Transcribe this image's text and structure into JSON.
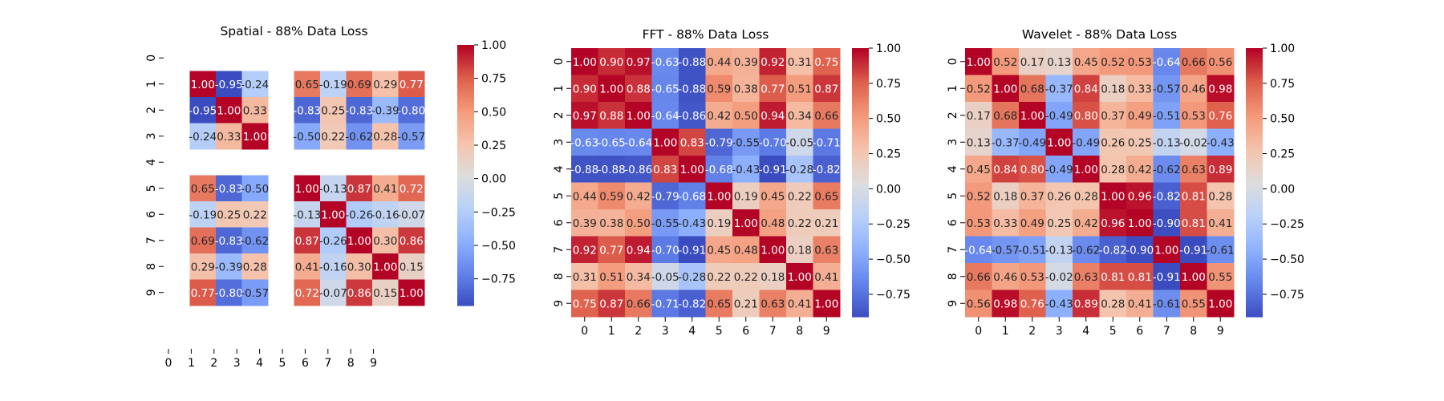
{
  "chart_data": [
    {
      "type": "heatmap",
      "title": "Spatial - 88% Data Loss",
      "xlabel": "",
      "ylabel": "",
      "x_tick_labels": [
        "0",
        "1",
        "2",
        "3",
        "4",
        "5",
        "6",
        "7",
        "8",
        "9"
      ],
      "y_tick_labels": [
        "0",
        "1",
        "2",
        "3",
        "4",
        "5",
        "6",
        "7",
        "8",
        "9"
      ],
      "colorbar_range": [
        -0.95,
        1.0
      ],
      "colorbar_ticks": [
        -0.75,
        -0.5,
        -0.25,
        0.0,
        0.25,
        0.5,
        0.75,
        1.0
      ],
      "colorbar_tick_labels": [
        "−0.75",
        "−0.50",
        "−0.25",
        "0.00",
        "0.25",
        "0.50",
        "0.75",
        "1.00"
      ],
      "missing_rows_cols": [
        0,
        4
      ],
      "y_axis_spans_missing": true,
      "values": [
        [
          null,
          null,
          null,
          null,
          null,
          null,
          null,
          null,
          null,
          null
        ],
        [
          null,
          1.0,
          -0.95,
          -0.24,
          null,
          0.65,
          -0.19,
          0.69,
          0.29,
          0.77
        ],
        [
          null,
          -0.95,
          1.0,
          0.33,
          null,
          -0.83,
          0.25,
          -0.83,
          -0.39,
          -0.8
        ],
        [
          null,
          -0.24,
          0.33,
          1.0,
          null,
          -0.5,
          0.22,
          -0.62,
          0.28,
          -0.57
        ],
        [
          null,
          null,
          null,
          null,
          null,
          null,
          null,
          null,
          null,
          null
        ],
        [
          null,
          0.65,
          -0.83,
          -0.5,
          null,
          1.0,
          -0.13,
          0.87,
          0.41,
          0.72
        ],
        [
          null,
          -0.19,
          0.25,
          0.22,
          null,
          -0.13,
          1.0,
          -0.26,
          -0.16,
          -0.07
        ],
        [
          null,
          0.69,
          -0.83,
          -0.62,
          null,
          0.87,
          -0.26,
          1.0,
          0.3,
          0.86
        ],
        [
          null,
          0.29,
          -0.39,
          0.28,
          null,
          0.41,
          -0.16,
          0.3,
          1.0,
          0.15
        ],
        [
          null,
          0.77,
          -0.8,
          -0.57,
          null,
          0.72,
          -0.07,
          0.86,
          0.15,
          1.0
        ]
      ]
    },
    {
      "type": "heatmap",
      "title": "FFT - 88% Data Loss",
      "xlabel": "",
      "ylabel": "",
      "x_tick_labels": [
        "0",
        "1",
        "2",
        "3",
        "4",
        "5",
        "6",
        "7",
        "8",
        "9"
      ],
      "y_tick_labels": [
        "0",
        "1",
        "2",
        "3",
        "4",
        "5",
        "6",
        "7",
        "8",
        "9"
      ],
      "colorbar_range": [
        -0.91,
        1.0
      ],
      "colorbar_ticks": [
        -0.75,
        -0.5,
        -0.25,
        0.0,
        0.25,
        0.5,
        0.75,
        1.0
      ],
      "colorbar_tick_labels": [
        "−0.75",
        "−0.50",
        "−0.25",
        "0.00",
        "0.25",
        "0.50",
        "0.75",
        "1.00"
      ],
      "values": [
        [
          1.0,
          0.9,
          0.97,
          -0.63,
          -0.88,
          0.44,
          0.39,
          0.92,
          0.31,
          0.75
        ],
        [
          0.9,
          1.0,
          0.88,
          -0.65,
          -0.88,
          0.59,
          0.38,
          0.77,
          0.51,
          0.87
        ],
        [
          0.97,
          0.88,
          1.0,
          -0.64,
          -0.86,
          0.42,
          0.5,
          0.94,
          0.34,
          0.66
        ],
        [
          -0.63,
          -0.65,
          -0.64,
          1.0,
          0.83,
          -0.79,
          -0.55,
          -0.7,
          -0.05,
          -0.71
        ],
        [
          -0.88,
          -0.88,
          -0.86,
          0.83,
          1.0,
          -0.68,
          -0.43,
          -0.91,
          -0.28,
          -0.82
        ],
        [
          0.44,
          0.59,
          0.42,
          -0.79,
          -0.68,
          1.0,
          0.19,
          0.45,
          0.22,
          0.65
        ],
        [
          0.39,
          0.38,
          0.5,
          -0.55,
          -0.43,
          0.19,
          1.0,
          0.48,
          0.22,
          0.21
        ],
        [
          0.92,
          0.77,
          0.94,
          -0.7,
          -0.91,
          0.45,
          0.48,
          1.0,
          0.18,
          0.63
        ],
        [
          0.31,
          0.51,
          0.34,
          -0.05,
          -0.28,
          0.22,
          0.22,
          0.18,
          1.0,
          0.41
        ],
        [
          0.75,
          0.87,
          0.66,
          -0.71,
          -0.82,
          0.65,
          0.21,
          0.63,
          0.41,
          1.0
        ]
      ]
    },
    {
      "type": "heatmap",
      "title": "Wavelet - 88% Data Loss",
      "xlabel": "",
      "ylabel": "",
      "x_tick_labels": [
        "0",
        "1",
        "2",
        "3",
        "4",
        "5",
        "6",
        "7",
        "8",
        "9"
      ],
      "y_tick_labels": [
        "0",
        "1",
        "2",
        "3",
        "4",
        "5",
        "6",
        "7",
        "8",
        "9"
      ],
      "colorbar_range": [
        -0.91,
        1.0
      ],
      "colorbar_ticks": [
        -0.75,
        -0.5,
        -0.25,
        0.0,
        0.25,
        0.5,
        0.75,
        1.0
      ],
      "colorbar_tick_labels": [
        "−0.75",
        "−0.50",
        "−0.25",
        "0.00",
        "0.25",
        "0.50",
        "0.75",
        "1.00"
      ],
      "values": [
        [
          1.0,
          0.52,
          0.17,
          0.13,
          0.45,
          0.52,
          0.53,
          -0.64,
          0.66,
          0.56
        ],
        [
          0.52,
          1.0,
          0.68,
          -0.37,
          0.84,
          0.18,
          0.33,
          -0.57,
          0.46,
          0.98
        ],
        [
          0.17,
          0.68,
          1.0,
          -0.49,
          0.8,
          0.37,
          0.49,
          -0.51,
          0.53,
          0.76
        ],
        [
          0.13,
          -0.37,
          -0.49,
          1.0,
          -0.49,
          0.26,
          0.25,
          -0.13,
          -0.02,
          -0.43
        ],
        [
          0.45,
          0.84,
          0.8,
          -0.49,
          1.0,
          0.28,
          0.42,
          -0.62,
          0.63,
          0.89
        ],
        [
          0.52,
          0.18,
          0.37,
          0.26,
          0.28,
          1.0,
          0.96,
          -0.82,
          0.81,
          0.28
        ],
        [
          0.53,
          0.33,
          0.49,
          0.25,
          0.42,
          0.96,
          1.0,
          -0.9,
          0.81,
          0.41
        ],
        [
          -0.64,
          -0.57,
          -0.51,
          -0.13,
          -0.62,
          -0.82,
          -0.9,
          1.0,
          -0.91,
          -0.61
        ],
        [
          0.66,
          0.46,
          0.53,
          -0.02,
          0.63,
          0.81,
          0.81,
          -0.91,
          1.0,
          0.55
        ],
        [
          0.56,
          0.98,
          0.76,
          -0.43,
          0.89,
          0.28,
          0.41,
          -0.61,
          0.55,
          1.0
        ]
      ]
    }
  ]
}
